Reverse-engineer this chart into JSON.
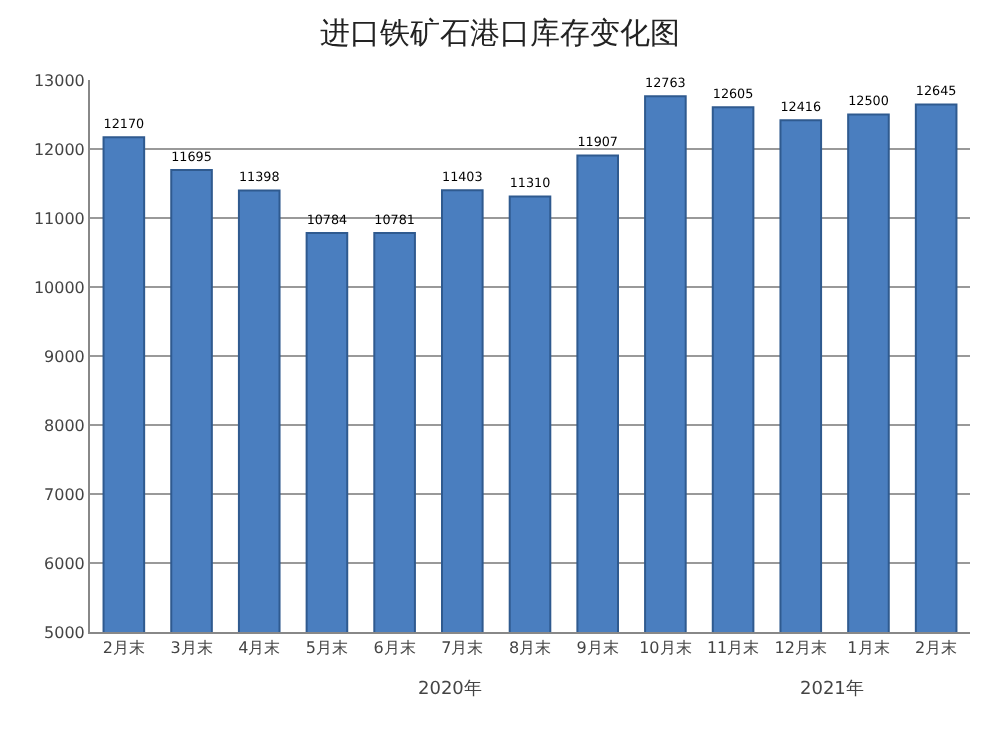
{
  "chart_data": {
    "type": "bar",
    "title": "进口铁矿石港口库存变化图",
    "categories": [
      "2月末",
      "3月末",
      "4月末",
      "5月末",
      "6月末",
      "7月末",
      "8月末",
      "9月末",
      "10月末",
      "11月末",
      "12月末",
      "1月末",
      "2月末"
    ],
    "values": [
      12170,
      11695,
      11398,
      10784,
      10781,
      11403,
      11310,
      11907,
      12763,
      12605,
      12416,
      12500,
      12645
    ],
    "color": "#4a7ebf",
    "ylim": [
      5000,
      13000
    ],
    "yticks": [
      5000,
      6000,
      7000,
      8000,
      9000,
      10000,
      11000,
      12000,
      13000
    ],
    "grid": "y",
    "data_labels": true,
    "annotations": [
      "2020年",
      "2021年"
    ]
  }
}
